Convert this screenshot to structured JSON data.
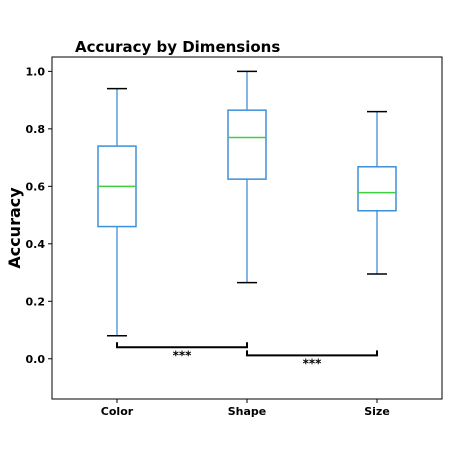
{
  "chart_data": {
    "type": "box",
    "title": "Accuracy by Dimensions",
    "xlabel": "",
    "ylabel": "Accuracy",
    "ylim": [
      -0.14,
      1.05
    ],
    "yticks": [
      "0.0",
      "0.2",
      "0.4",
      "0.6",
      "0.8",
      "1.0"
    ],
    "categories": [
      "Color",
      "Shape",
      "Size"
    ],
    "boxes": [
      {
        "category": "Color",
        "whisker_low": 0.08,
        "q1": 0.46,
        "median": 0.6,
        "q3": 0.74,
        "whisker_high": 0.94
      },
      {
        "category": "Shape",
        "whisker_low": 0.265,
        "q1": 0.625,
        "median": 0.77,
        "q3": 0.865,
        "whisker_high": 1.0
      },
      {
        "category": "Size",
        "whisker_low": 0.295,
        "q1": 0.515,
        "median": 0.578,
        "q3": 0.668,
        "whisker_high": 0.86
      }
    ],
    "significance": [
      {
        "from": "Color",
        "to": "Shape",
        "y": 0.04,
        "label": "***"
      },
      {
        "from": "Shape",
        "to": "Size",
        "y": 0.012,
        "label": "***"
      }
    ],
    "grid": false,
    "colors": {
      "box": "#3d8fd9",
      "median": "#3ecf3e",
      "cap": "#000000",
      "bracket": "#000000"
    }
  }
}
